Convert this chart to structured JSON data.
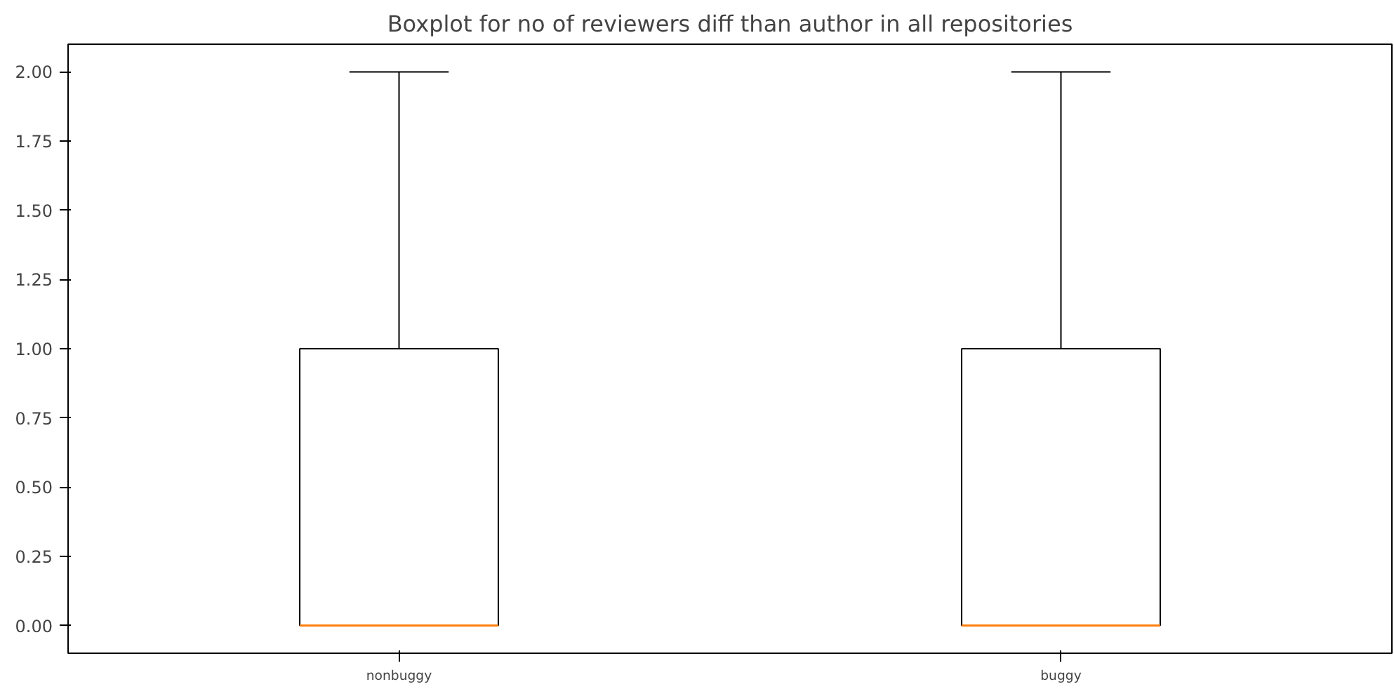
{
  "chart_data": {
    "type": "box",
    "title": "Boxplot for no of reviewers diff than author in all repositories",
    "categories": [
      "nonbuggy",
      "buggy"
    ],
    "boxes": [
      {
        "low": 0,
        "q1": 0,
        "median": 0,
        "q3": 1,
        "high": 2
      },
      {
        "low": 0,
        "q1": 0,
        "median": 0,
        "q3": 1,
        "high": 2
      }
    ],
    "color": "#000000",
    "ylim": [
      -0.1,
      2.1
    ],
    "yticks": [
      {
        "value": 0,
        "label": "0.00"
      },
      {
        "value": 0.25,
        "label": "0.25"
      },
      {
        "value": 0.5,
        "label": "0.50"
      },
      {
        "value": 0.75,
        "label": "0.75"
      },
      {
        "value": 1,
        "label": "1.00"
      },
      {
        "value": 1.25,
        "label": "1.25"
      },
      {
        "value": 1.5,
        "label": "1.50"
      },
      {
        "value": 1.75,
        "label": "1.75"
      },
      {
        "value": 2,
        "label": "2.00"
      }
    ],
    "grid": false
  }
}
